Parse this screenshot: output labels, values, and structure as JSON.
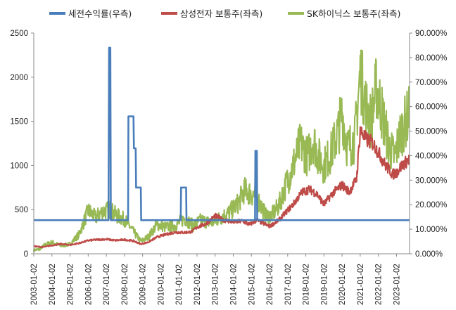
{
  "chart_data": {
    "type": "line",
    "legend": {
      "placement": "top",
      "entries": [
        {
          "label": "세전수익률(우측)",
          "color": "#4a7ebb"
        },
        {
          "label": "삼성전자 보통주(좌측)",
          "color": "#be4b48"
        },
        {
          "label": "SK하이닉스 보통주(좌측)",
          "color": "#98b954"
        }
      ]
    },
    "x_tick_labels": [
      "2003-01-02",
      "2004-01-02",
      "2005-01-02",
      "2006-01-02",
      "2007-01-02",
      "2008-01-02",
      "2009-01-02",
      "2010-01-02",
      "2011-01-02",
      "2012-01-02",
      "2013-01-02",
      "2014-01-02",
      "2015-01-02",
      "2016-01-02",
      "2017-01-02",
      "2018-01-02",
      "2019-01-02",
      "2020-01-02",
      "2021-01-02",
      "2022-01-02",
      "2023-01-02"
    ],
    "y_left": {
      "ylim": [
        0,
        2500
      ],
      "ticks": [
        "0",
        "500",
        "1000",
        "1500",
        "2000",
        "2500"
      ]
    },
    "y_right": {
      "ylim": [
        0,
        90
      ],
      "ticks": [
        "0.000%",
        "10.000%",
        "20.000%",
        "30.000%",
        "40.000%",
        "50.000%",
        "60.000%",
        "70.000%",
        "80.000%",
        "90.000%"
      ]
    },
    "grid": false,
    "series": [
      {
        "name": "세전수익률(우측)",
        "axis": "right",
        "color": "#4a7ebb",
        "points": [
          [
            2003.0,
            13.7
          ],
          [
            2007.12,
            13.7
          ],
          [
            2007.15,
            84
          ],
          [
            2007.22,
            84
          ],
          [
            2007.25,
            13.7
          ],
          [
            2008.2,
            13.7
          ],
          [
            2008.22,
            56
          ],
          [
            2008.5,
            56
          ],
          [
            2008.52,
            43
          ],
          [
            2008.62,
            43
          ],
          [
            2008.64,
            27
          ],
          [
            2008.9,
            27
          ],
          [
            2008.92,
            13.7
          ],
          [
            2011.1,
            13.7
          ],
          [
            2011.12,
            27
          ],
          [
            2011.4,
            27
          ],
          [
            2011.42,
            13.7
          ],
          [
            2015.2,
            13.7
          ],
          [
            2015.22,
            42
          ],
          [
            2015.3,
            42
          ],
          [
            2015.32,
            13.7
          ],
          [
            2023.7,
            13.7
          ]
        ]
      },
      {
        "name": "삼성전자 보통주(좌측)",
        "axis": "left",
        "color": "#be4b48",
        "points": [
          [
            2003.0,
            85
          ],
          [
            2003.5,
            75
          ],
          [
            2004.0,
            95
          ],
          [
            2004.5,
            110
          ],
          [
            2005.0,
            100
          ],
          [
            2005.5,
            120
          ],
          [
            2006.0,
            150
          ],
          [
            2006.5,
            160
          ],
          [
            2007.0,
            165
          ],
          [
            2007.5,
            150
          ],
          [
            2008.0,
            160
          ],
          [
            2008.5,
            145
          ],
          [
            2008.9,
            110
          ],
          [
            2009.3,
            130
          ],
          [
            2009.8,
            190
          ],
          [
            2010.3,
            220
          ],
          [
            2010.8,
            245
          ],
          [
            2011.3,
            240
          ],
          [
            2011.7,
            250
          ],
          [
            2012.0,
            300
          ],
          [
            2012.5,
            340
          ],
          [
            2013.0,
            430
          ],
          [
            2013.5,
            380
          ],
          [
            2014.0,
            360
          ],
          [
            2014.5,
            370
          ],
          [
            2014.9,
            330
          ],
          [
            2015.3,
            380
          ],
          [
            2015.8,
            330
          ],
          [
            2016.0,
            310
          ],
          [
            2016.5,
            380
          ],
          [
            2016.9,
            470
          ],
          [
            2017.3,
            560
          ],
          [
            2017.8,
            700
          ],
          [
            2018.2,
            730
          ],
          [
            2018.6,
            680
          ],
          [
            2019.0,
            560
          ],
          [
            2019.5,
            690
          ],
          [
            2020.0,
            780
          ],
          [
            2020.4,
            700
          ],
          [
            2020.8,
            850
          ],
          [
            2021.0,
            1400
          ],
          [
            2021.3,
            1300
          ],
          [
            2021.7,
            1250
          ],
          [
            2022.0,
            1150
          ],
          [
            2022.4,
            1000
          ],
          [
            2022.8,
            900
          ],
          [
            2023.0,
            920
          ],
          [
            2023.3,
            1000
          ],
          [
            2023.7,
            1070
          ]
        ]
      },
      {
        "name": "SK하이닉스 보통주(좌측)",
        "axis": "left",
        "color": "#98b954",
        "points": [
          [
            2003.0,
            40
          ],
          [
            2003.3,
            50
          ],
          [
            2003.6,
            100
          ],
          [
            2004.0,
            130
          ],
          [
            2004.5,
            90
          ],
          [
            2005.0,
            110
          ],
          [
            2005.5,
            220
          ],
          [
            2006.0,
            490
          ],
          [
            2006.4,
            410
          ],
          [
            2006.8,
            480
          ],
          [
            2007.2,
            500
          ],
          [
            2007.6,
            430
          ],
          [
            2008.0,
            390
          ],
          [
            2008.5,
            250
          ],
          [
            2008.9,
            140
          ],
          [
            2009.3,
            190
          ],
          [
            2009.8,
            330
          ],
          [
            2010.3,
            300
          ],
          [
            2010.8,
            320
          ],
          [
            2011.3,
            400
          ],
          [
            2011.8,
            320
          ],
          [
            2012.2,
            380
          ],
          [
            2012.8,
            350
          ],
          [
            2013.3,
            410
          ],
          [
            2013.8,
            470
          ],
          [
            2014.3,
            580
          ],
          [
            2014.6,
            720
          ],
          [
            2014.9,
            690
          ],
          [
            2015.2,
            660
          ],
          [
            2015.5,
            560
          ],
          [
            2015.8,
            430
          ],
          [
            2016.1,
            430
          ],
          [
            2016.5,
            540
          ],
          [
            2016.9,
            780
          ],
          [
            2017.3,
            1000
          ],
          [
            2017.7,
            1250
          ],
          [
            2018.1,
            1100
          ],
          [
            2018.4,
            1300
          ],
          [
            2018.7,
            1100
          ],
          [
            2019.0,
            1000
          ],
          [
            2019.4,
            1150
          ],
          [
            2019.8,
            1400
          ],
          [
            2020.0,
            1600
          ],
          [
            2020.3,
            1200
          ],
          [
            2020.7,
            1300
          ],
          [
            2021.0,
            2050
          ],
          [
            2021.3,
            1700
          ],
          [
            2021.6,
            1500
          ],
          [
            2021.9,
            1900
          ],
          [
            2022.2,
            1600
          ],
          [
            2022.6,
            1200
          ],
          [
            2022.9,
            1100
          ],
          [
            2023.2,
            1350
          ],
          [
            2023.5,
            1500
          ],
          [
            2023.7,
            1600
          ]
        ]
      }
    ]
  }
}
